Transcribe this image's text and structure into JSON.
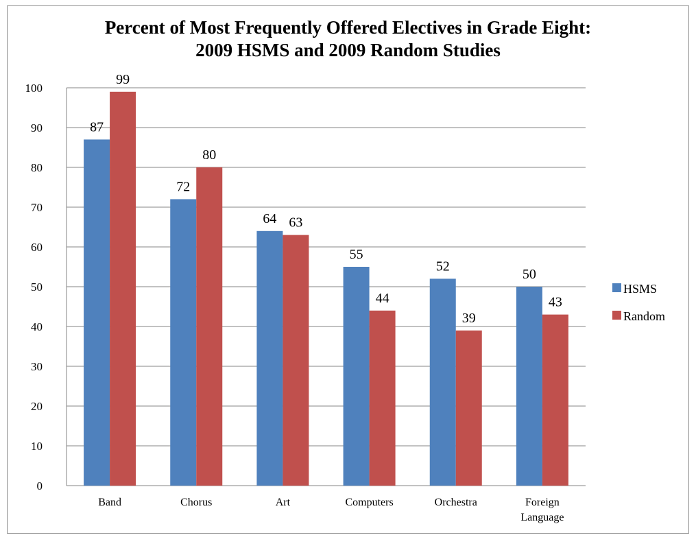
{
  "chart_data": {
    "type": "bar",
    "title": [
      "Percent of Most Frequently Offered Electives in Grade Eight:",
      "2009 HSMS and 2009 Random Studies"
    ],
    "categories": [
      [
        "Band"
      ],
      [
        "Chorus"
      ],
      [
        "Art"
      ],
      [
        "Computers"
      ],
      [
        "Orchestra"
      ],
      [
        "Foreign",
        "Language"
      ]
    ],
    "series": [
      {
        "name": "HSMS",
        "color": "#4f81bd",
        "values": [
          87,
          72,
          64,
          55,
          52,
          50
        ]
      },
      {
        "name": "Random",
        "color": "#c0504d",
        "values": [
          99,
          80,
          63,
          44,
          39,
          43
        ]
      }
    ],
    "ylim": [
      0,
      100
    ],
    "yticks": [
      0,
      10,
      20,
      30,
      40,
      50,
      60,
      70,
      80,
      90,
      100
    ],
    "xlabel": "",
    "ylabel": "",
    "grid": true,
    "legend": "right"
  }
}
